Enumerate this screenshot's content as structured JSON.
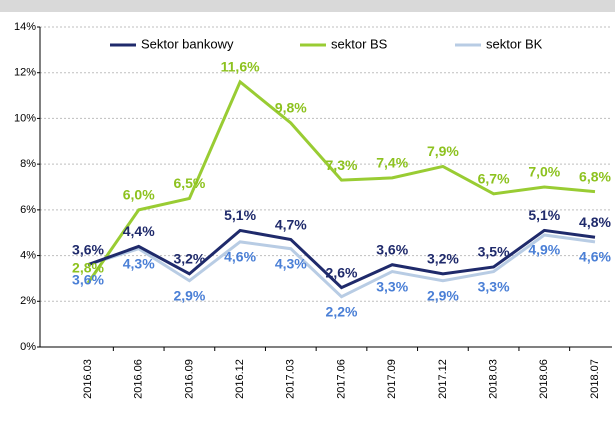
{
  "chart_data": {
    "type": "line",
    "categories": [
      "2016.03",
      "2016.06",
      "2016.09",
      "2016.12",
      "2017.03",
      "2017.06",
      "2017.09",
      "2017.12",
      "2018.03",
      "2018.06",
      "2018.07"
    ],
    "series": [
      {
        "name": "Sektor bankowy",
        "color": "#1f2a6b",
        "label_color": "#1f2a6b",
        "values": [
          3.6,
          4.4,
          3.2,
          5.1,
          4.7,
          2.6,
          3.6,
          3.2,
          3.5,
          5.1,
          4.8
        ],
        "value_labels": [
          "3,6%",
          "4,4%",
          "3,2%",
          "5,1%",
          "4,7%",
          "2,6%",
          "3,6%",
          "3,2%",
          "3,5%",
          "5,1%",
          "4,8%"
        ]
      },
      {
        "name": "sektor BS",
        "color": "#99cc33",
        "label_color": "#8dc21f",
        "values": [
          2.8,
          6.0,
          6.5,
          11.6,
          9.8,
          7.3,
          7.4,
          7.9,
          6.7,
          7.0,
          6.8
        ],
        "value_labels": [
          "2,8%",
          "6,0%",
          "6,5%",
          "11,6%",
          "9,8%",
          "7,3%",
          "7,4%",
          "7,9%",
          "6,7%",
          "7,0%",
          "6,8%"
        ]
      },
      {
        "name": "sektor BK",
        "color": "#b8cce4",
        "label_color": "#4a7fd6",
        "values": [
          3.6,
          4.3,
          2.9,
          4.6,
          4.3,
          2.2,
          3.3,
          2.9,
          3.3,
          4.9,
          4.6
        ],
        "value_labels": [
          "3,6%",
          "4,3%",
          "2,9%",
          "4,6%",
          "4,3%",
          "2,2%",
          "3,3%",
          "2,9%",
          "3,3%",
          "4,9%",
          "4,6%"
        ]
      }
    ],
    "ylim": [
      0,
      14
    ],
    "yticks": [
      {
        "value": 0,
        "label": "0%"
      },
      {
        "value": 2,
        "label": "2%"
      },
      {
        "value": 4,
        "label": "4%"
      },
      {
        "value": 6,
        "label": "6%"
      },
      {
        "value": 8,
        "label": "8%"
      },
      {
        "value": 10,
        "label": "10%"
      },
      {
        "value": 12,
        "label": "12%"
      },
      {
        "value": 14,
        "label": "14%"
      }
    ],
    "grid": true
  }
}
